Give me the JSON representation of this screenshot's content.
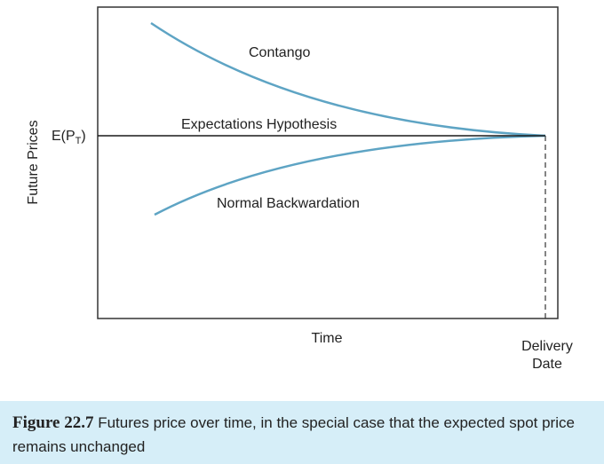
{
  "figure": {
    "y_axis_label": "Future Prices",
    "expected_price_label": {
      "prefix": "E(P",
      "subscript": "T",
      "suffix": ")"
    },
    "x_axis_label": "Time",
    "delivery_label": [
      "Delivery",
      "Date"
    ],
    "curves": [
      {
        "id": "contango",
        "label": "Contango",
        "color": "#5ea4c4"
      },
      {
        "id": "expectations",
        "label": "Expectations Hypothesis",
        "color": "#1a1a1a"
      },
      {
        "id": "backwardation",
        "label": "Normal Backwardation",
        "color": "#5ea4c4"
      }
    ]
  },
  "caption": {
    "figure_number": "Figure 22.7",
    "text": "Futures price over time, in the special case that the expected spot price remains unchanged"
  }
}
